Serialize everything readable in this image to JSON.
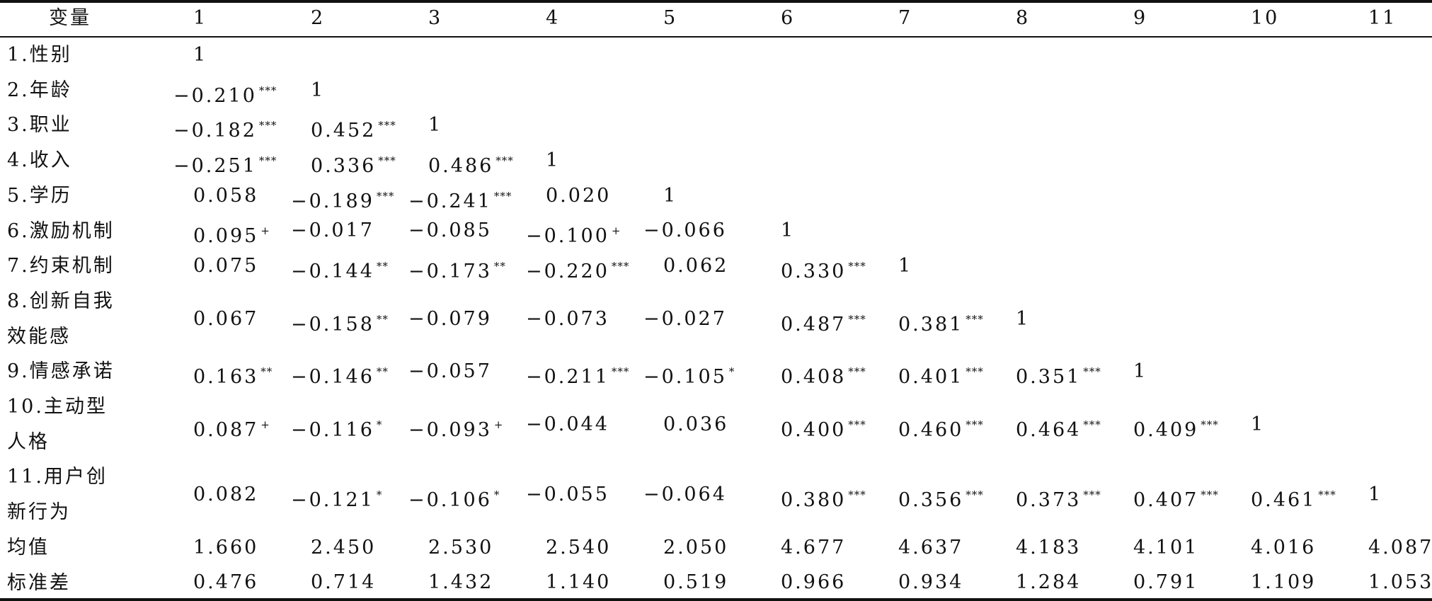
{
  "table": {
    "header": [
      "变量",
      "1",
      "2",
      "3",
      "4",
      "5",
      "6",
      "7",
      "8",
      "9",
      "10",
      "11"
    ],
    "rows": [
      {
        "label": [
          "1.性别"
        ],
        "cells": [
          {
            "text": "1"
          }
        ]
      },
      {
        "label": [
          "2.年龄"
        ],
        "cells": [
          {
            "text": "−0.210",
            "sup": "***"
          },
          {
            "text": "1"
          }
        ]
      },
      {
        "label": [
          "3.职业"
        ],
        "cells": [
          {
            "text": "−0.182",
            "sup": "***"
          },
          {
            "text": "0.452",
            "sup": "***"
          },
          {
            "text": "1"
          }
        ]
      },
      {
        "label": [
          "4.收入"
        ],
        "cells": [
          {
            "text": "−0.251",
            "sup": "***"
          },
          {
            "text": "0.336",
            "sup": "***"
          },
          {
            "text": "0.486",
            "sup": "***"
          },
          {
            "text": "1"
          }
        ]
      },
      {
        "label": [
          "5.学历"
        ],
        "cells": [
          {
            "text": "0.058"
          },
          {
            "text": "−0.189",
            "sup": "***"
          },
          {
            "text": "−0.241",
            "sup": "***"
          },
          {
            "text": "0.020"
          },
          {
            "text": "1"
          }
        ]
      },
      {
        "label": [
          "6.激励机制"
        ],
        "cells": [
          {
            "text": "0.095",
            "sup": "+"
          },
          {
            "text": "−0.017"
          },
          {
            "text": "−0.085"
          },
          {
            "text": "−0.100",
            "sup": "+"
          },
          {
            "text": "−0.066"
          },
          {
            "text": "1"
          }
        ]
      },
      {
        "label": [
          "7.约束机制"
        ],
        "cells": [
          {
            "text": "0.075"
          },
          {
            "text": "−0.144",
            "sup": "**"
          },
          {
            "text": "−0.173",
            "sup": "**"
          },
          {
            "text": "−0.220",
            "sup": "***"
          },
          {
            "text": "0.062"
          },
          {
            "text": "0.330",
            "sup": "***"
          },
          {
            "text": "1"
          }
        ]
      },
      {
        "label": [
          "8.创新自我",
          "效能感"
        ],
        "cells": [
          {
            "text": "0.067"
          },
          {
            "text": "−0.158",
            "sup": "**"
          },
          {
            "text": "−0.079"
          },
          {
            "text": "−0.073"
          },
          {
            "text": "−0.027"
          },
          {
            "text": "0.487",
            "sup": "***"
          },
          {
            "text": "0.381",
            "sup": "***"
          },
          {
            "text": "1"
          }
        ]
      },
      {
        "label": [
          "9.情感承诺"
        ],
        "cells": [
          {
            "text": "0.163",
            "sup": "**"
          },
          {
            "text": "−0.146",
            "sup": "**"
          },
          {
            "text": "−0.057"
          },
          {
            "text": "−0.211",
            "sup": "***"
          },
          {
            "text": "−0.105",
            "sup": "*"
          },
          {
            "text": "0.408",
            "sup": "***"
          },
          {
            "text": "0.401",
            "sup": "***"
          },
          {
            "text": "0.351",
            "sup": "***"
          },
          {
            "text": "1"
          }
        ]
      },
      {
        "label": [
          "10.主动型",
          "人格"
        ],
        "cells": [
          {
            "text": "0.087",
            "sup": "+"
          },
          {
            "text": "−0.116",
            "sup": "*"
          },
          {
            "text": "−0.093",
            "sup": "+"
          },
          {
            "text": "−0.044"
          },
          {
            "text": "0.036"
          },
          {
            "text": "0.400",
            "sup": "***"
          },
          {
            "text": "0.460",
            "sup": "***"
          },
          {
            "text": "0.464",
            "sup": "***"
          },
          {
            "text": "0.409",
            "sup": "***"
          },
          {
            "text": "1"
          }
        ]
      },
      {
        "label": [
          "11.用户创",
          "新行为"
        ],
        "cells": [
          {
            "text": "0.082"
          },
          {
            "text": "−0.121",
            "sup": "*"
          },
          {
            "text": "−0.106",
            "sup": "*"
          },
          {
            "text": "−0.055"
          },
          {
            "text": "−0.064"
          },
          {
            "text": "0.380",
            "sup": "***"
          },
          {
            "text": "0.356",
            "sup": "***"
          },
          {
            "text": "0.373",
            "sup": "***"
          },
          {
            "text": "0.407",
            "sup": "***"
          },
          {
            "text": "0.461",
            "sup": "***"
          },
          {
            "text": "1"
          }
        ]
      },
      {
        "label": [
          "均值"
        ],
        "cells": [
          {
            "text": "1.660"
          },
          {
            "text": "2.450"
          },
          {
            "text": "2.530"
          },
          {
            "text": "2.540"
          },
          {
            "text": "2.050"
          },
          {
            "text": "4.677"
          },
          {
            "text": "4.637"
          },
          {
            "text": "4.183"
          },
          {
            "text": "4.101"
          },
          {
            "text": "4.016"
          },
          {
            "text": "4.087"
          }
        ]
      },
      {
        "label": [
          "标准差"
        ],
        "cells": [
          {
            "text": "0.476"
          },
          {
            "text": "0.714"
          },
          {
            "text": "1.432"
          },
          {
            "text": "1.140"
          },
          {
            "text": "0.519"
          },
          {
            "text": "0.966"
          },
          {
            "text": "0.934"
          },
          {
            "text": "1.284"
          },
          {
            "text": "0.791"
          },
          {
            "text": "1.109"
          },
          {
            "text": "1.053"
          }
        ]
      }
    ]
  }
}
